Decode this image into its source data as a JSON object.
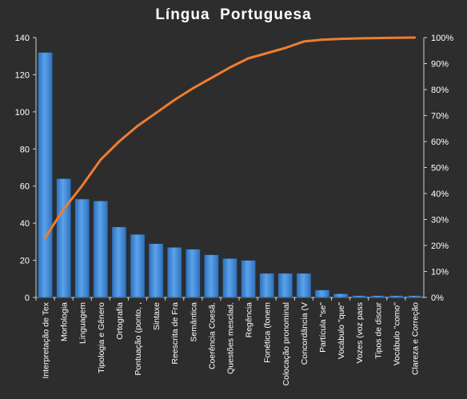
{
  "chart_data": {
    "type": "bar",
    "title": "Língua  Portuguesa",
    "categories": [
      "Interpretação de Tex",
      "Morfologia",
      "Linguagem",
      "Tipologia e Gênero",
      "Ortografia",
      "Pontuação (ponto, ,",
      "Sintaxe",
      "Reescrita de Fra",
      "Semântica",
      "Coerência Coesã.",
      "Questões mesclad.",
      "Regência",
      "Fonética (fonem",
      "Colocação pronominal",
      "Concordância (V",
      "Partícula \"se\"",
      "Vocábulo \"que\"",
      "Vozes (voz pass",
      "Tipos de discur",
      "Vocábulo \"como\"",
      "Clareza e Correção"
    ],
    "series": [
      {
        "type": "bar",
        "axis": "left",
        "color": "#4a90d9",
        "values": [
          132,
          64,
          53,
          52,
          38,
          34,
          29,
          27,
          26,
          23,
          21,
          20,
          13,
          13,
          13,
          4,
          2,
          1,
          1,
          1,
          1
        ]
      },
      {
        "type": "line",
        "axis": "right",
        "color": "#ed7d31",
        "values": [
          23,
          34,
          43,
          53,
          60,
          66,
          71,
          76,
          80.5,
          84.5,
          88.5,
          92,
          94,
          96,
          98.5,
          99.2,
          99.5,
          99.7,
          99.8,
          99.9,
          100
        ]
      }
    ],
    "y_left": {
      "min": 0,
      "max": 140,
      "ticks": [
        "0",
        "20",
        "40",
        "60",
        "80",
        "100",
        "120",
        "140"
      ]
    },
    "y_right": {
      "min": 0,
      "max": 100,
      "ticks": [
        "0%",
        "10%",
        "20%",
        "30%",
        "40%",
        "50%",
        "60%",
        "70%",
        "80%",
        "90%",
        "100%"
      ]
    },
    "grid": false,
    "legend": "none"
  }
}
